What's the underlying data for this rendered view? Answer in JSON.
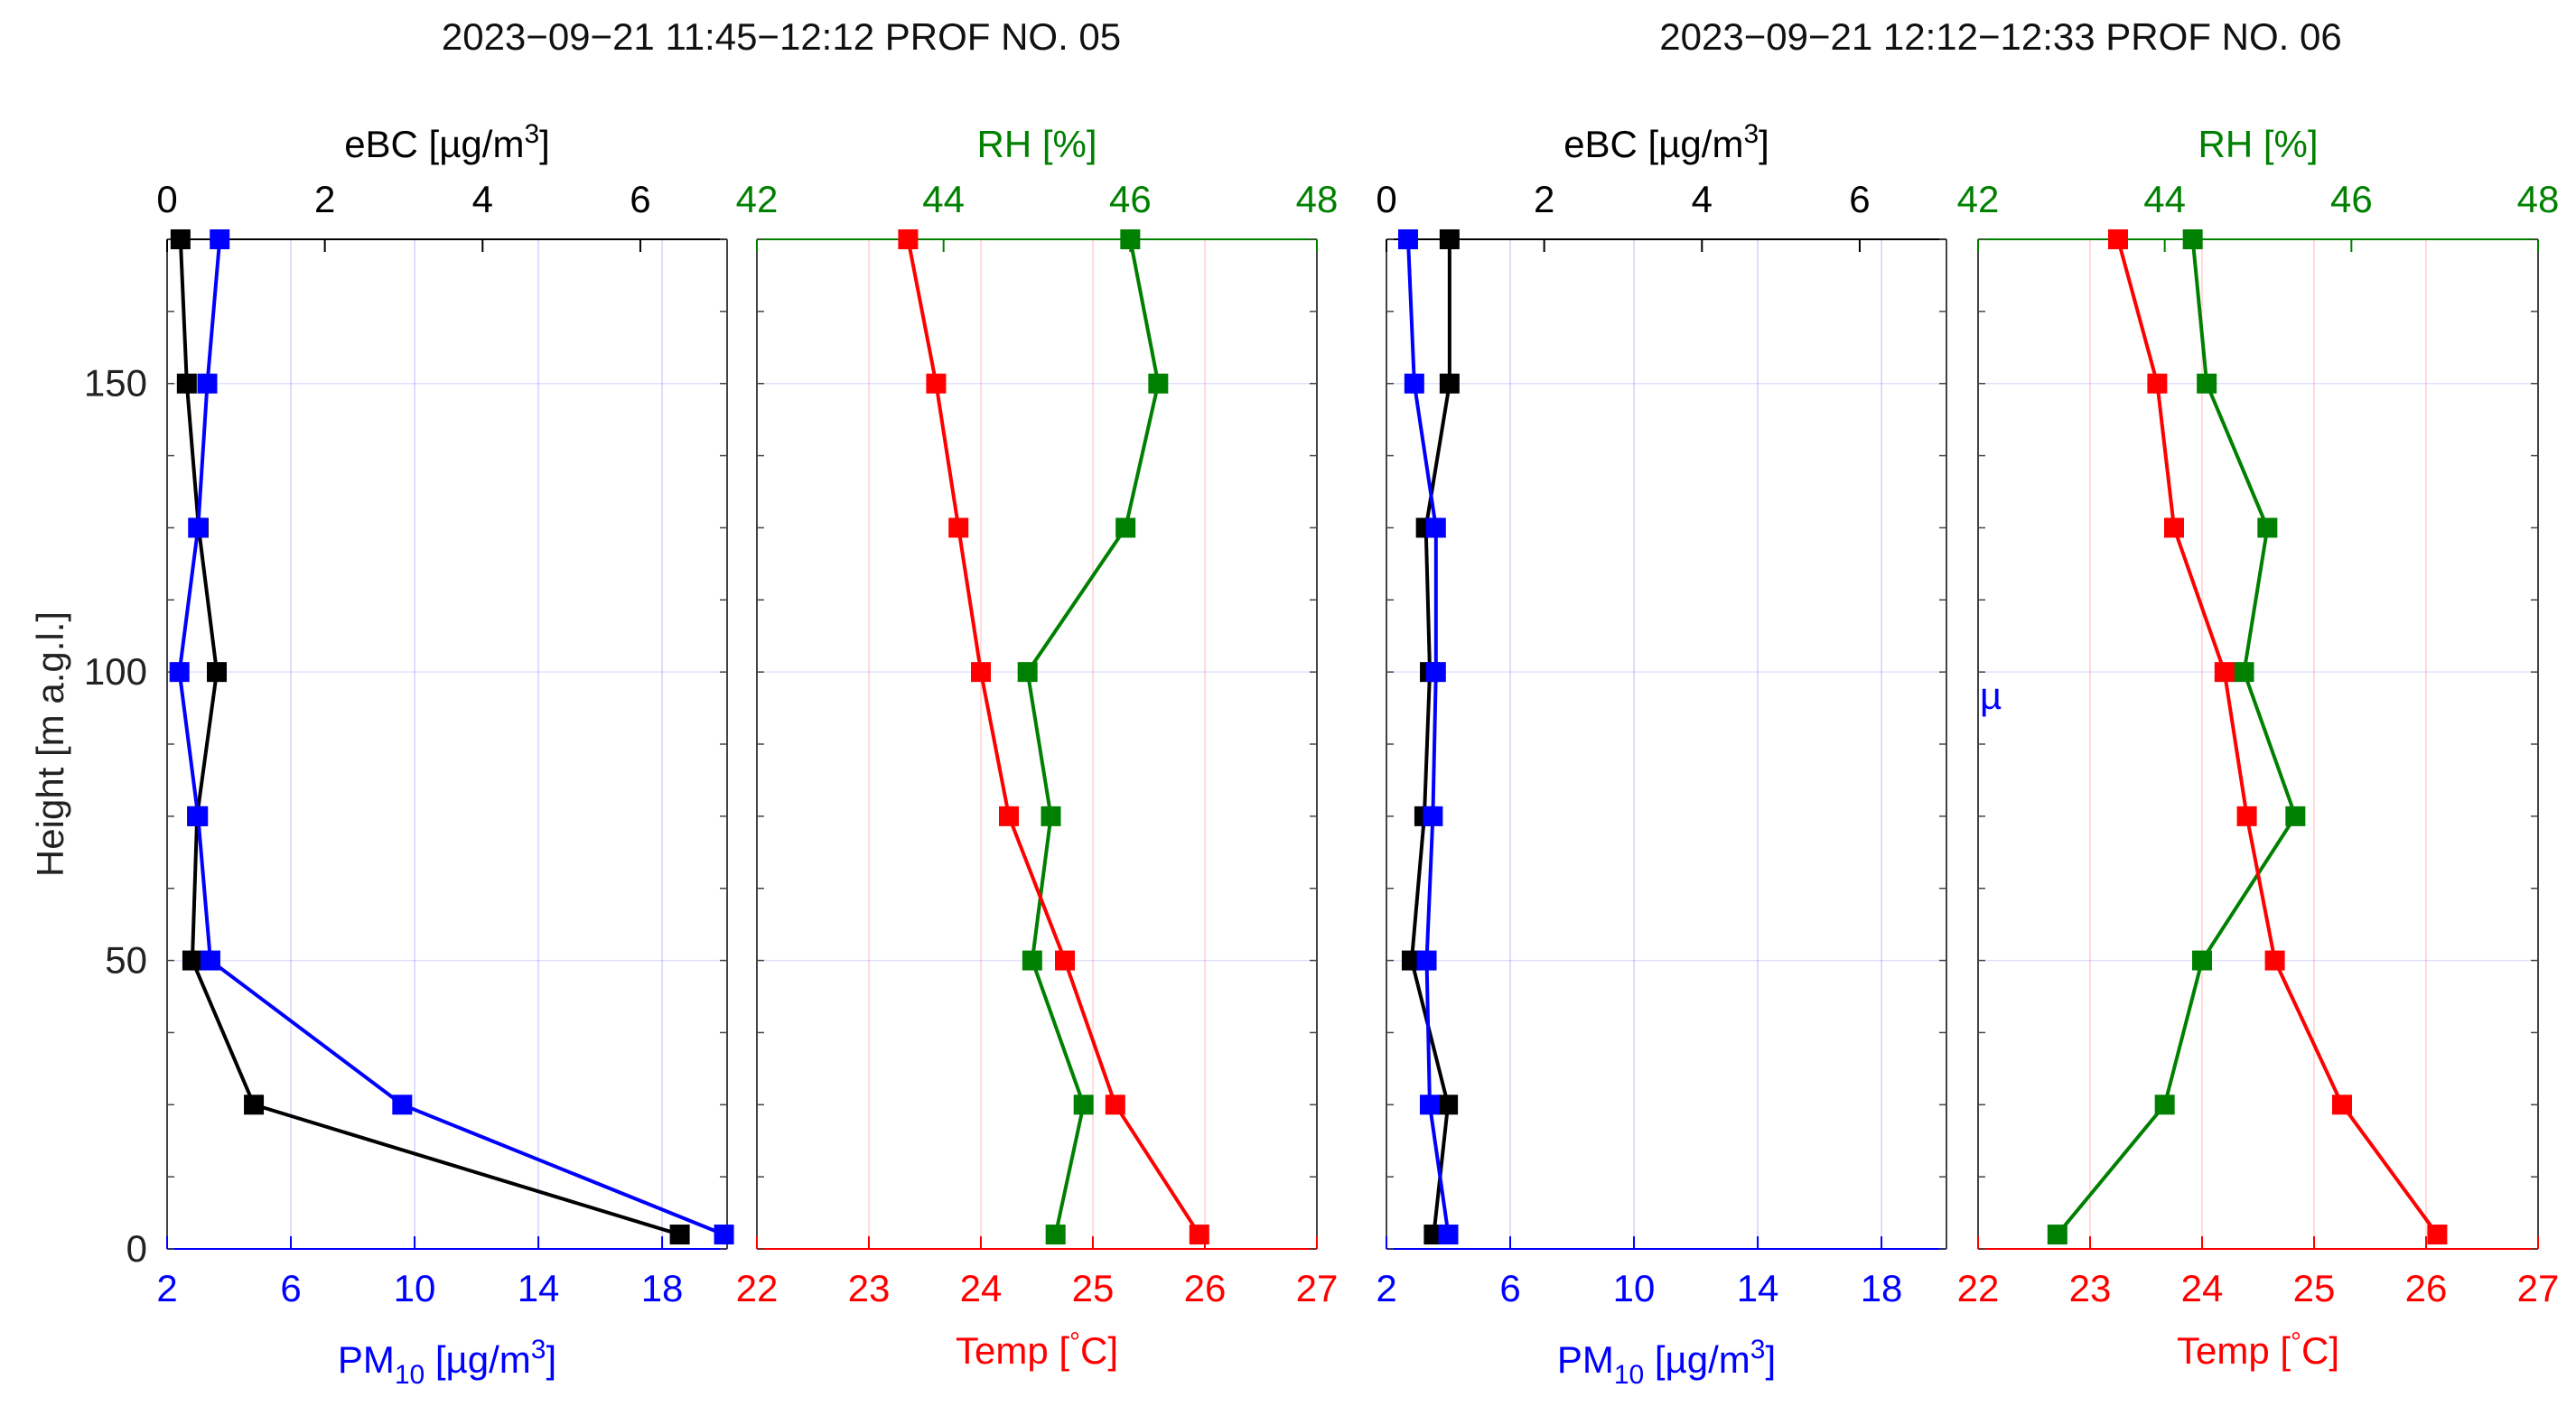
{
  "chart_data": [
    {
      "type": "line",
      "panel": "Profile 05 – aerosol (eBC / PM10)",
      "title": "2023−09−21 11:45−12:12 PROF NO. 05",
      "ylabel": "Height [m a.g.l.]",
      "ylim": [
        0,
        175
      ],
      "y_ticks": [
        "0",
        "50",
        "100",
        "150"
      ],
      "y_tick_values": [
        0,
        50,
        100,
        150
      ],
      "top_axis": {
        "label_main": "eBC [µg/m",
        "label_sup": "3",
        "label_end": "]",
        "color": "#000000",
        "lim": [
          0,
          7.1
        ],
        "ticks": [
          "0",
          "2",
          "4",
          "6"
        ],
        "tick_values": [
          0,
          2,
          4,
          6
        ]
      },
      "bottom_axis": {
        "label_main": "PM",
        "label_sub": "10",
        "label_end": " [µg/m",
        "label_sup": "3",
        "label_close": "]",
        "color": "#0000ff",
        "lim": [
          2,
          20.1
        ],
        "ticks": [
          "2",
          "6",
          "10",
          "14",
          "18"
        ],
        "tick_values": [
          2,
          6,
          10,
          14,
          18
        ]
      },
      "heights": [
        175,
        150,
        125,
        100,
        75,
        50,
        25,
        2.5
      ],
      "series": [
        {
          "name": "eBC",
          "axis": "top",
          "color": "#000000",
          "values": [
            0.17,
            0.25,
            0.4,
            0.63,
            0.38,
            0.32,
            1.1,
            6.5
          ]
        },
        {
          "name": "PM10",
          "axis": "bottom",
          "color": "#0000ff",
          "values": [
            3.7,
            3.3,
            3.0,
            2.4,
            3.0,
            3.4,
            9.6,
            20.0
          ]
        }
      ]
    },
    {
      "type": "line",
      "panel": "Profile 05 – meteorology (RH / Temp)",
      "ylim": [
        0,
        175
      ],
      "top_axis": {
        "label": "RH [%]",
        "color": "#008000",
        "lim": [
          42,
          48
        ],
        "ticks": [
          "42",
          "44",
          "46",
          "48"
        ],
        "tick_values": [
          42,
          44,
          46,
          48
        ]
      },
      "bottom_axis": {
        "label_main": "Temp [",
        "label_deg": "°",
        "label_end": "C]",
        "color": "#ff0000",
        "lim": [
          22,
          27
        ],
        "ticks": [
          "22",
          "23",
          "24",
          "25",
          "26",
          "27"
        ],
        "tick_values": [
          22,
          23,
          24,
          25,
          26,
          27
        ]
      },
      "heights": [
        175,
        150,
        125,
        100,
        75,
        50,
        25,
        2.5
      ],
      "series": [
        {
          "name": "RH",
          "axis": "top",
          "color": "#008000",
          "values": [
            46.0,
            46.3,
            45.95,
            44.9,
            45.15,
            44.95,
            45.5,
            45.2
          ]
        },
        {
          "name": "Temp",
          "axis": "bottom",
          "color": "#ff0000",
          "values": [
            23.35,
            23.6,
            23.8,
            24.0,
            24.25,
            24.75,
            25.2,
            25.95
          ]
        }
      ]
    },
    {
      "type": "line",
      "panel": "Profile 06 – aerosol (eBC / PM10)",
      "title": "2023−09−21 12:12−12:33 PROF NO. 06",
      "ylim": [
        0,
        175
      ],
      "top_axis": {
        "label_main": "eBC [µg/m",
        "label_sup": "3",
        "label_end": "]",
        "color": "#000000",
        "lim": [
          0,
          7.1
        ],
        "ticks": [
          "0",
          "2",
          "4",
          "6"
        ],
        "tick_values": [
          0,
          2,
          4,
          6
        ]
      },
      "bottom_axis": {
        "label_main": "PM",
        "label_sub": "10",
        "label_end": " [µg/m",
        "label_sup": "3",
        "label_close": "]",
        "color": "#0000ff",
        "lim": [
          2,
          20.1
        ],
        "ticks": [
          "2",
          "6",
          "10",
          "14",
          "18"
        ],
        "tick_values": [
          2,
          6,
          10,
          14,
          18
        ]
      },
      "heights": [
        175,
        150,
        125,
        100,
        75,
        50,
        25,
        2.5
      ],
      "series": [
        {
          "name": "eBC",
          "axis": "top",
          "color": "#000000",
          "values": [
            0.8,
            0.8,
            0.5,
            0.55,
            0.48,
            0.32,
            0.78,
            0.6
          ]
        },
        {
          "name": "PM10",
          "axis": "bottom",
          "color": "#0000ff",
          "values": [
            2.7,
            2.9,
            3.6,
            3.6,
            3.5,
            3.3,
            3.4,
            4.0
          ]
        }
      ]
    },
    {
      "type": "line",
      "panel": "Profile 06 – meteorology (RH / Temp)",
      "ylim": [
        0,
        175
      ],
      "top_axis": {
        "label": "RH [%]",
        "color": "#008000",
        "lim": [
          42,
          48
        ],
        "ticks": [
          "42",
          "44",
          "46",
          "48"
        ],
        "tick_values": [
          42,
          44,
          46,
          48
        ]
      },
      "bottom_axis": {
        "label_main": "Temp [",
        "label_deg": "°",
        "label_end": "C]",
        "color": "#ff0000",
        "lim": [
          22,
          27
        ],
        "ticks": [
          "22",
          "23",
          "24",
          "25",
          "26",
          "27"
        ],
        "tick_values": [
          22,
          23,
          24,
          25,
          26,
          27
        ]
      },
      "heights": [
        175,
        150,
        125,
        100,
        75,
        50,
        25,
        2.5
      ],
      "series": [
        {
          "name": "RH",
          "axis": "top",
          "color": "#008000",
          "values": [
            44.3,
            44.45,
            45.1,
            44.85,
            45.4,
            44.4,
            44.0,
            42.85
          ]
        },
        {
          "name": "Temp",
          "axis": "bottom",
          "color": "#ff0000",
          "values": [
            23.25,
            23.6,
            23.75,
            24.2,
            24.4,
            24.65,
            25.25,
            26.1
          ]
        }
      ],
      "annotation": "µ"
    }
  ]
}
